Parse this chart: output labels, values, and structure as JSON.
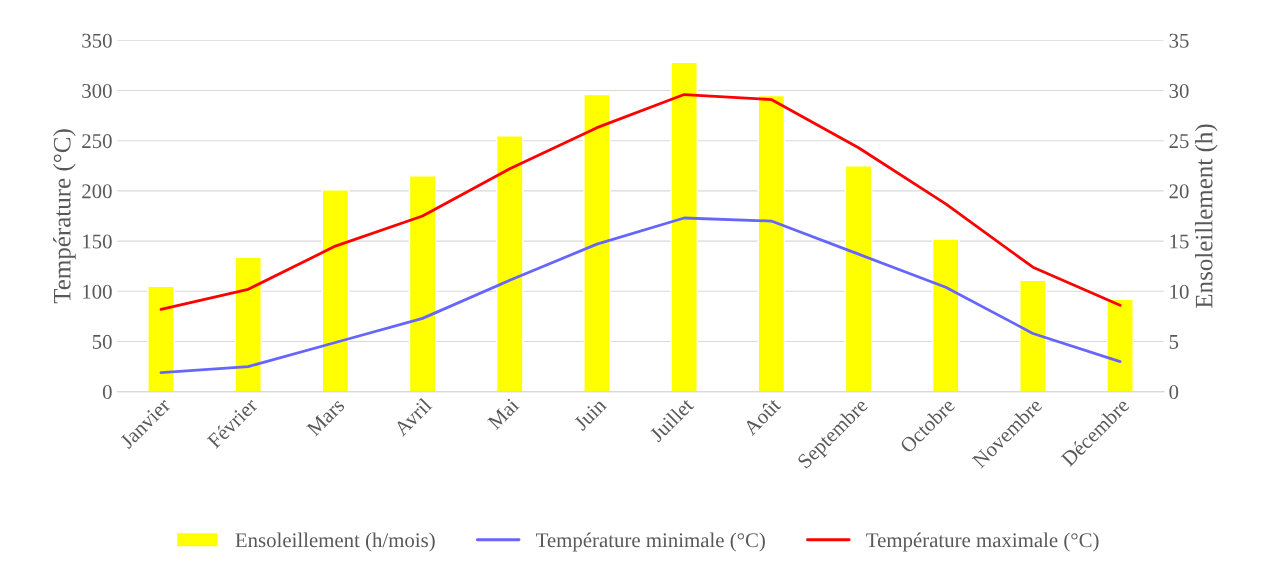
{
  "chart_data": {
    "type": "bar",
    "ylabel": "Température (°C)",
    "y2label": "Ensoleillement (h)",
    "categories": [
      "Janvier",
      "Février",
      "Mars",
      "Avril",
      "Mai",
      "Juin",
      "Juillet",
      "Août",
      "Septembre",
      "Octobre",
      "Novembre",
      "Décembre"
    ],
    "series": [
      {
        "name": "Ensoleillement (h/mois)",
        "color": "#ffff00",
        "values": [
          105,
          134,
          201,
          215,
          255,
          296,
          328,
          295,
          225,
          152,
          111,
          92
        ]
      },
      {
        "name": "Température minimale (°C)",
        "type": "line",
        "axis": "y2",
        "color": "#6666ff",
        "values": [
          1.9,
          2.5,
          4.9,
          7.3,
          11.1,
          14.7,
          17.3,
          17.0,
          13.7,
          10.4,
          5.8,
          3.0
        ]
      },
      {
        "name": "Température maximale (°C)",
        "type": "line",
        "axis": "y2",
        "color": "#ff0000",
        "values": [
          8.2,
          10.2,
          14.5,
          17.5,
          22.2,
          26.3,
          29.6,
          29.1,
          24.3,
          18.7,
          12.4,
          8.6
        ]
      }
    ],
    "ylim": [
      0,
      350
    ],
    "yticks": [
      0,
      50,
      100,
      150,
      200,
      250,
      300,
      350
    ],
    "y2lim": [
      0,
      35
    ],
    "y2ticks": [
      0,
      5,
      10,
      15,
      20,
      25,
      30,
      35
    ],
    "grid": "y",
    "legend": "bottom"
  }
}
